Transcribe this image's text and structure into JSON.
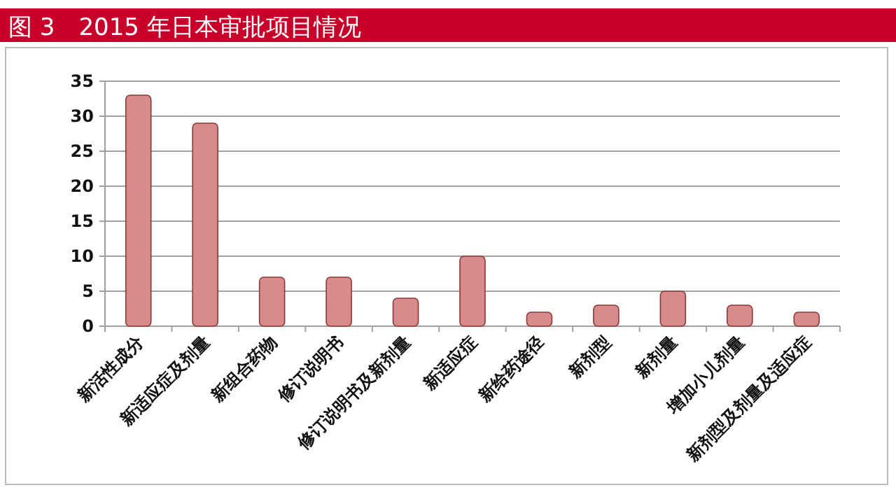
{
  "chart_data": {
    "type": "bar",
    "title": "图 3　2015 年日本审批项目情况",
    "categories": [
      "新活性成分",
      "新适应症及剂量",
      "新组合药物",
      "修订说明书",
      "修订说明书及新剂量",
      "新适应症",
      "新给药途径",
      "新剂型",
      "新剂量",
      "增加小儿剂量",
      "新剂型及剂量及适应症"
    ],
    "values": [
      33,
      29,
      7,
      7,
      4,
      10,
      2,
      3,
      5,
      3,
      2
    ],
    "color": "#d98a8a",
    "ylim": [
      0,
      35
    ],
    "yticks": [
      0,
      5,
      10,
      15,
      20,
      25,
      30,
      35
    ],
    "grid": "y"
  }
}
